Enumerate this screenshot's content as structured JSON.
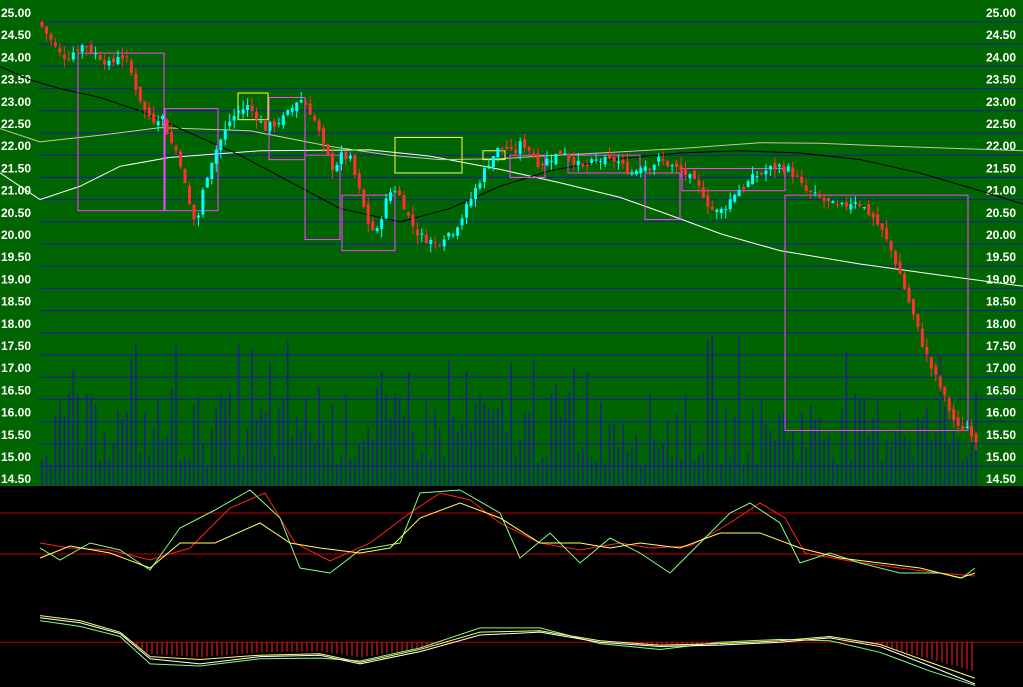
{
  "colors": {
    "main_bg": "#006400",
    "panel_bg": "#000000",
    "grid": "#1a1aa0",
    "tick_text": "#ffffff",
    "candle_up": "#00ffff",
    "candle_down": "#ff3030",
    "volume": "#1a1a9a",
    "ma_long": "#ffffff",
    "ma_mid": "#c8c8a0",
    "ma_short": "#000000",
    "box_magenta": "#ff40ff",
    "box_yellow": "#ffff40",
    "osc_red": "#ff2020",
    "osc_green": "#80ff80",
    "osc_yellow": "#ffff60",
    "macd_bar": "#ff2020",
    "ref_line": "#c00000"
  },
  "chart_data": {
    "type": "candlestick",
    "y_axis": {
      "ticks": [
        "25.00",
        "24.50",
        "24.00",
        "23.50",
        "23.00",
        "22.50",
        "22.00",
        "21.50",
        "21.00",
        "20.50",
        "20.00",
        "19.50",
        "19.00",
        "18.50",
        "18.00",
        "17.50",
        "17.00",
        "16.50",
        "16.00",
        "15.50",
        "15.00",
        "14.50"
      ],
      "range": [
        14.5,
        25.0
      ],
      "sides": "left-and-right"
    },
    "close_anchors": [
      24.9,
      24.6,
      24.3,
      24.2,
      24.4,
      24.5,
      24.3,
      24.2,
      24.0,
      24.3,
      24.1,
      23.5,
      23.0,
      22.8,
      22.9,
      22.3,
      22.0,
      21.0,
      20.4,
      21.4,
      22.0,
      22.4,
      22.8,
      23.0,
      23.1,
      22.9,
      22.6,
      22.7,
      22.8,
      23.0,
      23.3,
      23.1,
      22.7,
      22.1,
      21.7,
      22.0,
      21.9,
      21.2,
      20.5,
      20.2,
      20.9,
      21.3,
      21.0,
      20.5,
      20.2,
      20.1,
      20.0,
      20.2,
      20.3,
      20.6,
      21.0,
      21.4,
      21.8,
      22.1,
      22.2,
      22.0,
      22.3,
      22.1,
      21.8,
      21.9,
      22.0,
      22.1,
      21.9,
      21.7,
      21.8,
      21.9,
      21.85,
      21.9,
      21.7,
      21.6,
      21.8,
      21.75,
      21.9,
      21.8,
      21.7,
      21.6,
      21.4,
      21.2,
      20.8,
      20.7,
      20.9,
      21.2,
      21.3,
      21.5,
      21.6,
      21.7,
      21.75,
      21.7,
      21.5,
      21.2,
      21.1,
      21.0,
      20.9,
      20.8,
      20.9,
      21.0,
      20.8,
      20.6,
      20.3,
      19.9,
      19.4,
      18.8,
      18.2,
      17.6,
      17.1,
      16.7,
      16.2,
      15.8,
      15.9,
      15.6
    ],
    "ma_long": [
      [
        0,
        21.6
      ],
      [
        40,
        21.0
      ],
      [
        80,
        21.3
      ],
      [
        120,
        21.75
      ],
      [
        170,
        21.95
      ],
      [
        260,
        22.1
      ],
      [
        370,
        22.12
      ],
      [
        430,
        21.98
      ],
      [
        500,
        21.68
      ],
      [
        560,
        21.38
      ],
      [
        620,
        21.05
      ],
      [
        670,
        20.65
      ],
      [
        722,
        20.22
      ],
      [
        780,
        19.85
      ],
      [
        860,
        19.55
      ],
      [
        940,
        19.3
      ],
      [
        1023,
        19.05
      ]
    ],
    "ma_mid": [
      [
        0,
        22.6
      ],
      [
        40,
        22.3
      ],
      [
        100,
        22.45
      ],
      [
        160,
        22.62
      ],
      [
        250,
        22.55
      ],
      [
        330,
        22.2
      ],
      [
        390,
        22.0
      ],
      [
        440,
        21.9
      ],
      [
        500,
        21.92
      ],
      [
        540,
        21.98
      ],
      [
        600,
        22.05
      ],
      [
        680,
        22.15
      ],
      [
        760,
        22.28
      ],
      [
        820,
        22.27
      ],
      [
        870,
        22.22
      ],
      [
        1023,
        22.1
      ]
    ],
    "ma_short": [
      [
        0,
        24.0
      ],
      [
        30,
        23.7
      ],
      [
        60,
        23.5
      ],
      [
        100,
        23.3
      ],
      [
        140,
        23.0
      ],
      [
        190,
        22.5
      ],
      [
        240,
        22.0
      ],
      [
        290,
        21.4
      ],
      [
        340,
        20.8
      ],
      [
        400,
        20.5
      ],
      [
        450,
        20.8
      ],
      [
        500,
        21.3
      ],
      [
        550,
        21.65
      ],
      [
        610,
        21.9
      ],
      [
        680,
        22.05
      ],
      [
        740,
        22.1
      ],
      [
        800,
        22.05
      ],
      [
        860,
        21.9
      ],
      [
        920,
        21.6
      ],
      [
        980,
        21.2
      ],
      [
        1023,
        20.9
      ]
    ],
    "ma_short2": [
      [
        0,
        24.2
      ],
      [
        40,
        23.8
      ],
      [
        80,
        23.2
      ],
      [
        120,
        22.6
      ],
      [
        160,
        22.2
      ],
      [
        200,
        21.9
      ],
      [
        240,
        21.6
      ],
      [
        300,
        21.3
      ],
      [
        360,
        21.2
      ],
      [
        400,
        21.0
      ],
      [
        440,
        21.2
      ],
      [
        500,
        21.55
      ],
      [
        560,
        21.8
      ],
      [
        620,
        21.85
      ],
      [
        700,
        21.7
      ],
      [
        760,
        21.55
      ],
      [
        820,
        21.3
      ],
      [
        880,
        21.1
      ],
      [
        940,
        20.5
      ],
      [
        980,
        19.6
      ],
      [
        1023,
        18.8
      ]
    ],
    "boxes_magenta": [
      [
        78,
        164,
        24.3,
        20.75
      ],
      [
        165,
        218,
        23.05,
        20.75
      ],
      [
        269,
        305,
        23.3,
        21.9
      ],
      [
        305,
        340,
        22.0,
        20.1
      ],
      [
        342,
        395,
        21.1,
        19.85
      ],
      [
        510,
        545,
        22.0,
        21.5
      ],
      [
        568,
        640,
        22.0,
        21.6
      ],
      [
        645,
        680,
        21.6,
        20.55
      ],
      [
        682,
        785,
        21.7,
        21.2
      ],
      [
        785,
        968,
        21.1,
        15.8
      ]
    ],
    "boxes_yellow": [
      [
        238,
        268,
        23.4,
        22.8
      ],
      [
        395,
        462,
        22.4,
        21.6
      ],
      [
        483,
        505,
        22.1,
        21.9
      ]
    ],
    "volume_max": 18.1,
    "volume_base": 14.5
  },
  "oscillator": {
    "ref_levels": [
      0.25,
      0.66
    ],
    "red": [
      [
        40,
        0.55
      ],
      [
        70,
        0.6
      ],
      [
        110,
        0.62
      ],
      [
        150,
        0.72
      ],
      [
        190,
        0.6
      ],
      [
        230,
        0.2
      ],
      [
        265,
        0.05
      ],
      [
        295,
        0.55
      ],
      [
        330,
        0.73
      ],
      [
        370,
        0.55
      ],
      [
        410,
        0.25
      ],
      [
        440,
        0.05
      ],
      [
        470,
        0.12
      ],
      [
        500,
        0.35
      ],
      [
        540,
        0.55
      ],
      [
        580,
        0.62
      ],
      [
        620,
        0.55
      ],
      [
        650,
        0.6
      ],
      [
        690,
        0.58
      ],
      [
        730,
        0.35
      ],
      [
        760,
        0.15
      ],
      [
        785,
        0.3
      ],
      [
        805,
        0.65
      ],
      [
        850,
        0.73
      ],
      [
        900,
        0.8
      ],
      [
        940,
        0.85
      ],
      [
        975,
        0.88
      ]
    ],
    "green": [
      [
        40,
        0.6
      ],
      [
        60,
        0.72
      ],
      [
        90,
        0.55
      ],
      [
        120,
        0.62
      ],
      [
        150,
        0.82
      ],
      [
        180,
        0.4
      ],
      [
        215,
        0.22
      ],
      [
        250,
        0.02
      ],
      [
        280,
        0.3
      ],
      [
        300,
        0.8
      ],
      [
        330,
        0.85
      ],
      [
        360,
        0.62
      ],
      [
        400,
        0.55
      ],
      [
        420,
        0.05
      ],
      [
        460,
        0.02
      ],
      [
        500,
        0.25
      ],
      [
        520,
        0.7
      ],
      [
        550,
        0.45
      ],
      [
        580,
        0.75
      ],
      [
        610,
        0.5
      ],
      [
        640,
        0.65
      ],
      [
        670,
        0.85
      ],
      [
        700,
        0.55
      ],
      [
        730,
        0.25
      ],
      [
        750,
        0.15
      ],
      [
        780,
        0.35
      ],
      [
        800,
        0.75
      ],
      [
        830,
        0.65
      ],
      [
        860,
        0.75
      ],
      [
        900,
        0.85
      ],
      [
        940,
        0.85
      ],
      [
        962,
        0.9
      ],
      [
        975,
        0.8
      ]
    ],
    "yellow": [
      [
        40,
        0.7
      ],
      [
        70,
        0.58
      ],
      [
        110,
        0.65
      ],
      [
        150,
        0.8
      ],
      [
        180,
        0.55
      ],
      [
        215,
        0.55
      ],
      [
        260,
        0.35
      ],
      [
        290,
        0.55
      ],
      [
        320,
        0.6
      ],
      [
        360,
        0.65
      ],
      [
        390,
        0.6
      ],
      [
        420,
        0.3
      ],
      [
        460,
        0.15
      ],
      [
        500,
        0.3
      ],
      [
        540,
        0.55
      ],
      [
        580,
        0.55
      ],
      [
        610,
        0.6
      ],
      [
        640,
        0.55
      ],
      [
        680,
        0.6
      ],
      [
        720,
        0.45
      ],
      [
        760,
        0.45
      ],
      [
        800,
        0.6
      ],
      [
        840,
        0.7
      ],
      [
        880,
        0.75
      ],
      [
        920,
        0.8
      ],
      [
        960,
        0.9
      ],
      [
        975,
        0.85
      ]
    ]
  },
  "macd": {
    "zero_level": 0.42,
    "lines_white": [
      [
        40,
        0.08
      ],
      [
        80,
        0.15
      ],
      [
        120,
        0.3
      ],
      [
        150,
        0.65
      ],
      [
        200,
        0.72
      ],
      [
        260,
        0.62
      ],
      [
        320,
        0.6
      ],
      [
        360,
        0.72
      ],
      [
        420,
        0.55
      ],
      [
        480,
        0.32
      ],
      [
        540,
        0.28
      ],
      [
        600,
        0.42
      ],
      [
        660,
        0.48
      ],
      [
        720,
        0.46
      ],
      [
        780,
        0.42
      ],
      [
        830,
        0.36
      ],
      [
        880,
        0.48
      ],
      [
        930,
        0.75
      ],
      [
        975,
        1.0
      ]
    ],
    "lines_yellow": [
      [
        40,
        0.05
      ],
      [
        80,
        0.12
      ],
      [
        120,
        0.28
      ],
      [
        150,
        0.62
      ],
      [
        200,
        0.66
      ],
      [
        260,
        0.6
      ],
      [
        320,
        0.58
      ],
      [
        360,
        0.7
      ],
      [
        420,
        0.52
      ],
      [
        480,
        0.28
      ],
      [
        540,
        0.26
      ],
      [
        600,
        0.4
      ],
      [
        660,
        0.46
      ],
      [
        720,
        0.44
      ],
      [
        780,
        0.4
      ],
      [
        830,
        0.34
      ],
      [
        880,
        0.45
      ],
      [
        930,
        0.7
      ],
      [
        975,
        0.92
      ]
    ],
    "lines_green": [
      [
        40,
        0.12
      ],
      [
        80,
        0.2
      ],
      [
        120,
        0.34
      ],
      [
        150,
        0.72
      ],
      [
        200,
        0.75
      ],
      [
        260,
        0.65
      ],
      [
        320,
        0.64
      ],
      [
        360,
        0.68
      ],
      [
        420,
        0.5
      ],
      [
        480,
        0.22
      ],
      [
        540,
        0.22
      ],
      [
        600,
        0.44
      ],
      [
        660,
        0.52
      ],
      [
        720,
        0.42
      ],
      [
        780,
        0.38
      ],
      [
        830,
        0.4
      ],
      [
        880,
        0.56
      ],
      [
        930,
        0.82
      ],
      [
        975,
        1.02
      ]
    ]
  }
}
